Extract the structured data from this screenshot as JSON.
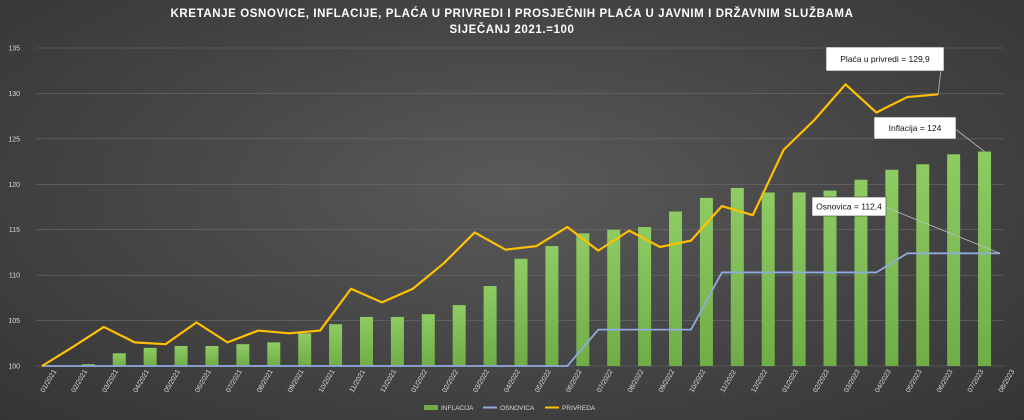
{
  "chart_data": {
    "type": "bar",
    "title": "KRETANJE OSNOVICE, INFLACIJE, PLAĆA U PRIVREDI I PROSJEČNIH PLAĆA U JAVNIM I DRŽAVNIM SLUŽBAMA",
    "subtitle": "SIJEČANJ 2021.=100",
    "categories": [
      "01/2021",
      "02/2021",
      "03/2021",
      "04/2021",
      "05/2021",
      "06/2021",
      "07/2021",
      "08/2021",
      "09/2021",
      "10/2021",
      "11/2021",
      "12/2021",
      "01/2022",
      "02/2022",
      "03/2022",
      "04/2022",
      "05/2022",
      "06/2022",
      "07/2022",
      "08/2022",
      "09/2022",
      "10/2022",
      "11/2022",
      "12/2022",
      "01/2023",
      "02/2023",
      "03/2023",
      "04/2023",
      "05/2023",
      "06/2023",
      "07/2023",
      "08/2023"
    ],
    "ylim": [
      100,
      135
    ],
    "yticks": [
      100,
      105,
      110,
      115,
      120,
      125,
      130,
      135
    ],
    "grid": true,
    "legend_position": "bottom",
    "series": [
      {
        "name": "INFLACIJA",
        "kind": "bar",
        "color": "#70ad47",
        "values": [
          100.0,
          100.2,
          101.4,
          102.0,
          102.2,
          102.2,
          102.4,
          102.6,
          103.6,
          104.6,
          105.4,
          105.4,
          105.7,
          106.7,
          108.8,
          111.8,
          113.2,
          114.6,
          115.0,
          115.3,
          117.0,
          118.5,
          119.6,
          119.1,
          119.1,
          119.3,
          120.5,
          121.6,
          122.2,
          123.3,
          123.6,
          null
        ]
      },
      {
        "name": "OSNOVICA",
        "kind": "line",
        "color": "#8faadc",
        "values": [
          100,
          100,
          100,
          100,
          100,
          100,
          100,
          100,
          100,
          100,
          100,
          100,
          100,
          100,
          100,
          100,
          100,
          100,
          104,
          104,
          104,
          104,
          110.3,
          110.3,
          110.3,
          110.3,
          110.3,
          110.3,
          112.4,
          112.4,
          112.4,
          112.4
        ]
      },
      {
        "name": "PRIVREDA",
        "kind": "line",
        "color": "#ffc000",
        "values": [
          100.0,
          102.1,
          104.3,
          102.6,
          102.4,
          104.8,
          102.6,
          103.9,
          103.6,
          103.9,
          108.5,
          107.0,
          108.5,
          111.3,
          114.7,
          112.8,
          113.2,
          115.3,
          112.7,
          114.9,
          113.1,
          113.8,
          117.6,
          116.6,
          123.8,
          127.1,
          131.0,
          127.9,
          129.6,
          129.9,
          null,
          null
        ]
      }
    ],
    "annotations": [
      {
        "text": "Plaća u privredi = 129,9",
        "series": "PRIVREDA",
        "index": 29
      },
      {
        "text": "Inflacija = 124",
        "series": "INFLACIJA",
        "index": 30
      },
      {
        "text": "Osnovica = 112,4",
        "series": "OSNOVICA",
        "index": 31
      }
    ]
  }
}
